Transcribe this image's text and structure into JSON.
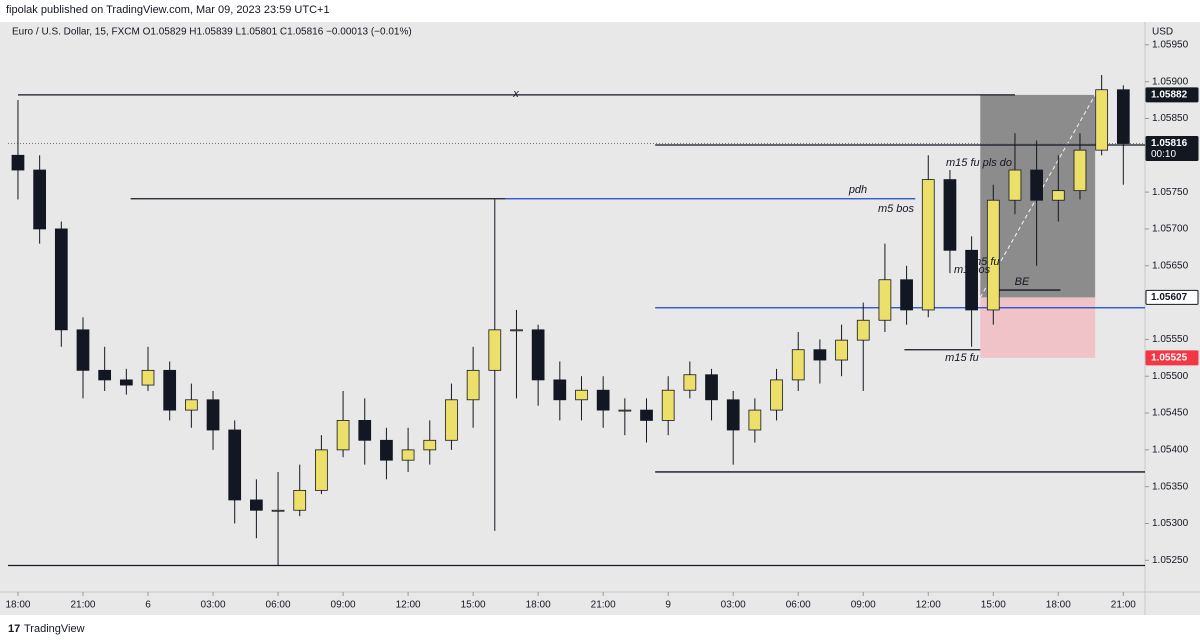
{
  "header": {
    "publisher": "fipolak published on TradingView.com, Mar 09, 2023 23:59 UTC+1",
    "symbol": "Euro / U.S. Dollar, 15, FXCM  O1.05829 H1.05839 L1.05801 C1.05816 −0.00013 (−0.01%)"
  },
  "footer": {
    "brand": "TradingView"
  },
  "chart_data": {
    "type": "candlestick",
    "axis_label": "USD",
    "x": [
      0,
      1,
      2,
      3,
      4,
      5,
      6,
      7,
      8,
      9,
      10,
      11,
      12,
      13,
      14,
      15,
      16,
      17,
      18,
      19,
      20,
      21,
      22,
      23,
      24,
      25,
      26,
      27,
      28,
      29,
      30,
      31,
      32,
      33,
      34,
      35,
      36,
      37,
      38,
      39,
      40,
      41,
      42,
      43,
      44,
      45,
      46,
      47,
      48,
      49,
      50,
      51
    ],
    "open": [
      1.058,
      1.0578,
      1.057,
      1.05563,
      1.05508,
      1.05495,
      1.05488,
      1.05508,
      1.05454,
      1.05468,
      1.05427,
      1.05332,
      1.05318,
      1.05318,
      1.05345,
      1.054,
      1.0544,
      1.05413,
      1.05386,
      1.054,
      1.05413,
      1.05468,
      1.05508,
      1.05563,
      1.05563,
      1.05495,
      1.05468,
      1.05481,
      1.05454,
      1.05454,
      1.0544,
      1.05481,
      1.05502,
      1.05468,
      1.05427,
      1.05454,
      1.05495,
      1.05536,
      1.05522,
      1.05549,
      1.05576,
      1.05631,
      1.0559,
      1.05767,
      1.05671,
      1.0559,
      1.05739,
      1.0578,
      1.05739,
      1.05752,
      1.05807,
      1.05889
    ],
    "high": [
      1.05875,
      1.058,
      1.0571,
      1.0558,
      1.0554,
      1.0551,
      1.0554,
      1.0552,
      1.0549,
      1.0548,
      1.0544,
      1.0536,
      1.0537,
      1.0538,
      1.0542,
      1.0548,
      1.0547,
      1.0543,
      1.0543,
      1.0544,
      1.0549,
      1.0554,
      1.0574,
      1.0559,
      1.0557,
      1.0552,
      1.055,
      1.055,
      1.0547,
      1.0547,
      1.055,
      1.0552,
      1.0551,
      1.0548,
      1.0547,
      1.0551,
      1.0556,
      1.0555,
      1.0557,
      1.056,
      1.0568,
      1.0565,
      1.058,
      1.0578,
      1.0569,
      1.0576,
      1.0583,
      1.0582,
      1.058,
      1.0583,
      1.05909,
      1.05895
    ],
    "low": [
      1.0574,
      1.0568,
      1.0554,
      1.0547,
      1.0548,
      1.05475,
      1.0548,
      1.0544,
      1.0543,
      1.054,
      1.053,
      1.0528,
      1.05243,
      1.0531,
      1.0534,
      1.0539,
      1.0538,
      1.0536,
      1.0537,
      1.0538,
      1.054,
      1.0543,
      1.0529,
      1.0547,
      1.0546,
      1.0544,
      1.0544,
      1.0543,
      1.0542,
      1.0541,
      1.0542,
      1.0547,
      1.0544,
      1.0538,
      1.0541,
      1.0544,
      1.0548,
      1.0549,
      1.055,
      1.0548,
      1.0556,
      1.0557,
      1.0558,
      1.0564,
      1.0554,
      1.0557,
      1.0572,
      1.0565,
      1.0571,
      1.0574,
      1.058,
      1.0576
    ],
    "close": [
      1.0578,
      1.057,
      1.05563,
      1.05508,
      1.05495,
      1.05488,
      1.05508,
      1.05454,
      1.05468,
      1.05427,
      1.05332,
      1.05318,
      1.05318,
      1.05345,
      1.054,
      1.0544,
      1.05413,
      1.05386,
      1.054,
      1.05413,
      1.05468,
      1.05508,
      1.05563,
      1.05563,
      1.05495,
      1.05468,
      1.05481,
      1.05454,
      1.05454,
      1.0544,
      1.05481,
      1.05502,
      1.05468,
      1.05427,
      1.05454,
      1.05495,
      1.05536,
      1.05522,
      1.05549,
      1.05576,
      1.05631,
      1.0559,
      1.05767,
      1.05671,
      1.0559,
      1.05739,
      1.0578,
      1.05739,
      1.05752,
      1.05807,
      1.05889,
      1.05816
    ],
    "up_color": "#ece06a",
    "down_color": "#131722",
    "xlim": [
      -0.46,
      52
    ],
    "ylim": [
      1.05207,
      1.05981
    ],
    "xticks": [
      {
        "value": 0,
        "label": "18:00"
      },
      {
        "value": 3,
        "label": "21:00"
      },
      6,
      {
        "value": 9,
        "label": "03:00"
      },
      {
        "value": 12,
        "label": "06:00"
      },
      {
        "value": 15,
        "label": "09:00"
      },
      {
        "value": 18,
        "label": "12:00"
      },
      {
        "value": 21,
        "label": "15:00"
      },
      {
        "value": 24,
        "label": "18:00"
      },
      {
        "value": 27,
        "label": "21:00"
      },
      {
        "value": 30,
        "label": "9"
      },
      {
        "value": 33,
        "label": "03:00"
      },
      {
        "value": 36,
        "label": "06:00"
      },
      {
        "value": 39,
        "label": "09:00"
      },
      {
        "value": 42,
        "label": "12:00"
      },
      {
        "value": 45,
        "label": "15:00"
      },
      {
        "value": 48,
        "label": "18:00"
      },
      {
        "value": 51,
        "label": "21:00"
      }
    ],
    "yticks": [
      {
        "value": 1.0595,
        "label": "1.05950"
      },
      {
        "value": 1.059,
        "label": "1.05900"
      },
      {
        "value": 1.0585,
        "label": "1.05850"
      },
      {
        "value": 1.0575,
        "label": "1.05750"
      },
      {
        "value": 1.057,
        "label": "1.05700"
      },
      {
        "value": 1.0565,
        "label": "1.05650"
      },
      {
        "value": 1.0555,
        "label": "1.05550"
      },
      {
        "value": 1.055,
        "label": "1.05500"
      },
      {
        "value": 1.0545,
        "label": "1.05450"
      },
      {
        "value": 1.054,
        "label": "1.05400"
      },
      {
        "value": 1.0535,
        "label": "1.05350"
      },
      {
        "value": 1.053,
        "label": "1.05300"
      },
      {
        "value": 1.0525,
        "label": "1.05250"
      }
    ],
    "levels": [
      {
        "price": 1.05882,
        "x0": 0,
        "x1": 46,
        "color": "#131722"
      },
      {
        "price": 1.05814,
        "x0": 29.4,
        "x1": 52,
        "color": "#131722"
      },
      {
        "price": 1.05741,
        "x0": 5.2,
        "x1": 22.5,
        "color": "#131722"
      },
      {
        "price": 1.05741,
        "x0": 22.5,
        "x1": 41.4,
        "color": "#1848cc"
      },
      {
        "price": 1.05593,
        "x0": 29.4,
        "x1": 52,
        "color": "#1848cc"
      },
      {
        "price": 1.0537,
        "x0": 29.4,
        "x1": 52,
        "color": "#131722"
      },
      {
        "price": 1.05243,
        "x0": -0.46,
        "x1": 52,
        "color": "#131722"
      },
      {
        "price": 1.05536,
        "x0": 40.9,
        "x1": 44.4,
        "color": "#131722"
      },
      {
        "price": 1.05617,
        "x0": 44.9,
        "x1": 48.1,
        "color": "#131722"
      }
    ],
    "position": {
      "entry": 1.05607,
      "target": 1.05882,
      "stop": 1.05525,
      "x0": 44.4,
      "x1": 49.7
    },
    "price_labels": [
      {
        "value": 1.05882,
        "label": "1.05882",
        "color": "#131722"
      },
      {
        "value": 1.05816,
        "label": "1.05816",
        "sub": "00:10",
        "color": "#131722"
      },
      {
        "value": 1.05607,
        "label": "1.05607",
        "color": "#ffffff"
      },
      {
        "value": 1.05525,
        "label": "1.05525",
        "color": "#f23645"
      }
    ],
    "annotations": [
      "x",
      "pdh",
      "m5 bos",
      "m15 fu pls do",
      "m5 fu",
      "m1 bos",
      "BE",
      "m15 fu"
    ]
  }
}
